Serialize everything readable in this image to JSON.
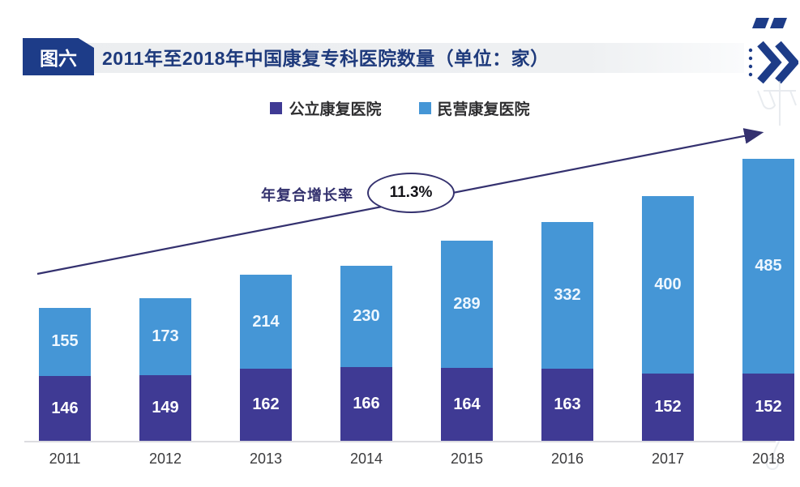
{
  "header": {
    "figure_label": "图六",
    "title": "2011年至2018年中国康复专科医院数量（单位：家）",
    "badge_color": "#1d3c88",
    "title_color": "#1e3a7c"
  },
  "legend": {
    "items": [
      {
        "label": "公立康复医院",
        "color": "#3f3a94"
      },
      {
        "label": "民营康复医院",
        "color": "#4596d6"
      }
    ]
  },
  "annotation": {
    "label": "年复合增长率",
    "value": "11.3%"
  },
  "chart_data": {
    "type": "bar",
    "stacked": true,
    "title": "2011年至2018年中国康复专科医院数量（单位：家）",
    "unit": "家",
    "categories": [
      "2011",
      "2012",
      "2013",
      "2014",
      "2015",
      "2016",
      "2017",
      "2018"
    ],
    "series": [
      {
        "name": "公立康复医院",
        "color": "#3f3a94",
        "values": [
          146,
          149,
          162,
          166,
          164,
          163,
          152,
          152
        ]
      },
      {
        "name": "民营康复医院",
        "color": "#4596d6",
        "values": [
          155,
          173,
          214,
          230,
          289,
          332,
          400,
          485
        ]
      }
    ],
    "totals": [
      301,
      322,
      376,
      396,
      453,
      495,
      552,
      637
    ],
    "cagr": "11.3%",
    "bar_label_color": "#ffffff",
    "ylim": [
      0,
      650
    ],
    "grid": false,
    "legend_position": "top",
    "trend_arrow": true,
    "arrow_color": "#34316f"
  }
}
